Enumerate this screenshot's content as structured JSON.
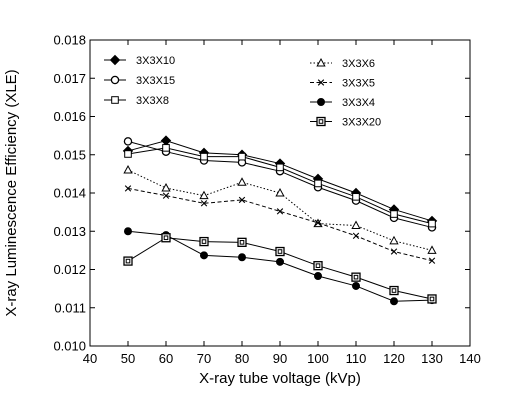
{
  "chart_data": {
    "type": "line",
    "title": "",
    "xlabel": "X-ray tube voltage (kVp)",
    "ylabel": "X-ray Luminescence Efficiency (XLE)",
    "xlim": [
      40,
      140
    ],
    "ylim": [
      0.01,
      0.018
    ],
    "xticks": [
      "40",
      "50",
      "60",
      "70",
      "80",
      "90",
      "100",
      "110",
      "120",
      "130",
      "140"
    ],
    "yticks": [
      "0.010",
      "0.011",
      "0.012",
      "0.013",
      "0.014",
      "0.015",
      "0.016",
      "0.017",
      "0.018"
    ],
    "grid": false,
    "legend_placement": "top",
    "x": [
      50,
      60,
      70,
      80,
      90,
      100,
      110,
      120,
      130
    ],
    "series": [
      {
        "name": "3X3X10",
        "marker": "filled-diamond",
        "line": "solid",
        "values": [
          0.0151,
          0.01537,
          0.01505,
          0.015,
          0.01477,
          0.01437,
          0.014,
          0.01357,
          0.01327
        ]
      },
      {
        "name": "3X3X15",
        "marker": "open-circle",
        "line": "solid",
        "values": [
          0.01535,
          0.01508,
          0.01485,
          0.0148,
          0.01457,
          0.01415,
          0.0138,
          0.01335,
          0.0131
        ]
      },
      {
        "name": "3X3X8",
        "marker": "open-square",
        "line": "solid",
        "values": [
          0.01502,
          0.01518,
          0.01495,
          0.01495,
          0.01467,
          0.01425,
          0.0139,
          0.01345,
          0.0132
        ]
      },
      {
        "name": "3X3X6",
        "marker": "open-triangle",
        "line": "dotted",
        "values": [
          0.0146,
          0.01413,
          0.01393,
          0.01428,
          0.014,
          0.0132,
          0.01315,
          0.01275,
          0.0125
        ]
      },
      {
        "name": "3X3X5",
        "marker": "cross",
        "line": "dashed",
        "values": [
          0.01412,
          0.01393,
          0.01373,
          0.01382,
          0.01352,
          0.01322,
          0.01288,
          0.01247,
          0.01223
        ]
      },
      {
        "name": "3X3X4",
        "marker": "filled-circle",
        "line": "solid",
        "values": [
          0.013,
          0.0129,
          0.01237,
          0.01232,
          0.0122,
          0.01183,
          0.01157,
          0.01117,
          0.0112
        ]
      },
      {
        "name": "3X3X20",
        "marker": "double-square",
        "line": "solid",
        "values": [
          0.01222,
          0.01283,
          0.01273,
          0.01271,
          0.01247,
          0.0121,
          0.0118,
          0.01145,
          0.01123
        ]
      }
    ]
  }
}
